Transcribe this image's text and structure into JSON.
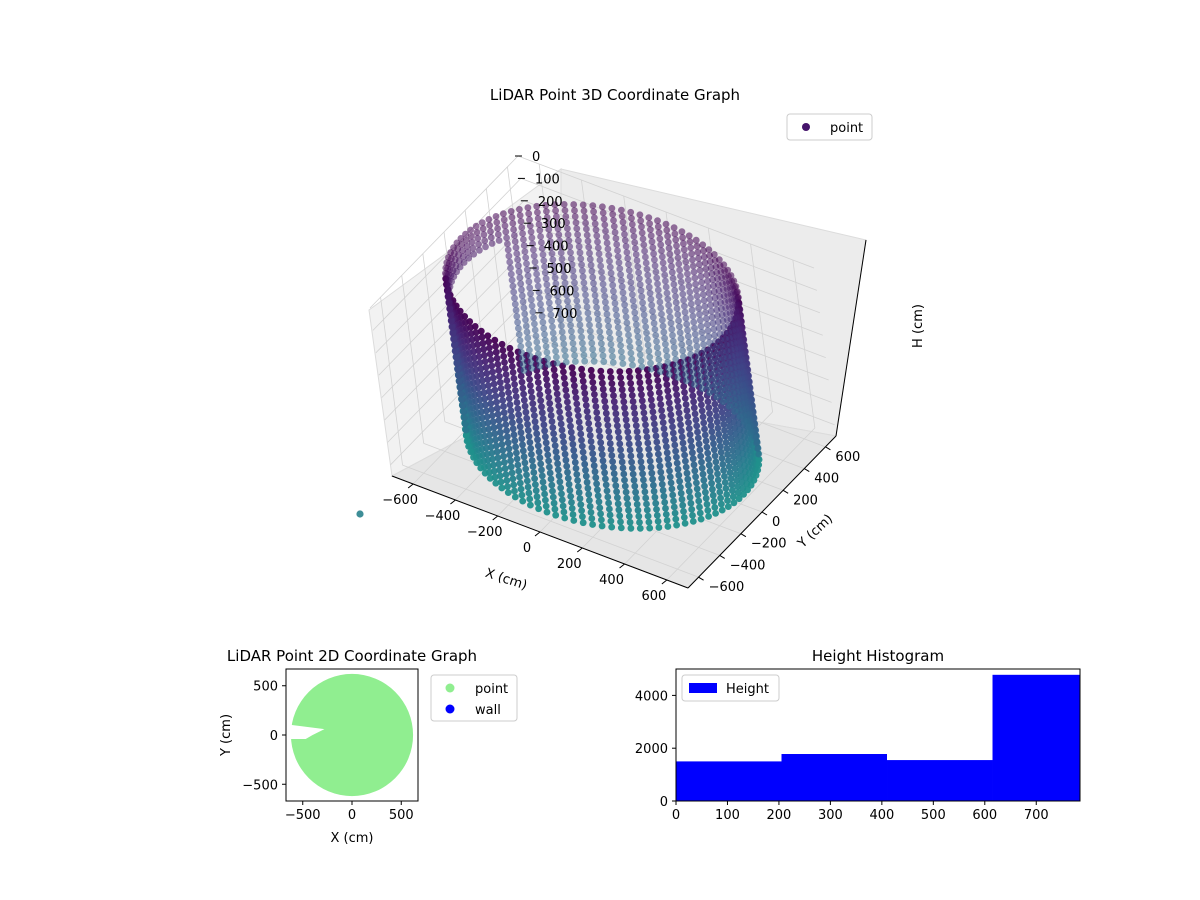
{
  "chart_data": [
    {
      "type": "scatter3d",
      "title": "LiDAR Point 3D Coordinate Graph",
      "xlabel": "X (cm)",
      "ylabel": "Y (cm)",
      "zlabel": "H (cm)",
      "xticks": [
        -600,
        -400,
        -200,
        0,
        200,
        400,
        600
      ],
      "yticks": [
        -600,
        -400,
        -200,
        0,
        200,
        400,
        600
      ],
      "zticks": [
        0,
        100,
        200,
        300,
        400,
        500,
        600,
        700
      ],
      "xlim": [
        -700,
        700
      ],
      "ylim": [
        -700,
        700
      ],
      "zlim": [
        750,
        0
      ],
      "grid": true,
      "legend": {
        "position": "top-right",
        "entries": [
          {
            "label": "point",
            "color": "#45146b"
          }
        ]
      },
      "series": [
        {
          "name": "point",
          "shape": "cylindrical wall",
          "radius": 620,
          "height_range": [
            0,
            700
          ],
          "colormap": "viridis (dark purple at top, teal at bottom)",
          "gap_direction": "-x side, near y = 0"
        }
      ]
    },
    {
      "type": "scatter",
      "title": "LiDAR Point 2D Coordinate Graph",
      "xlabel": "X (cm)",
      "ylabel": "Y (cm)",
      "xticks": [
        -500,
        0,
        500
      ],
      "yticks": [
        -500,
        0,
        500
      ],
      "xlim": [
        -670,
        670
      ],
      "ylim": [
        -670,
        670
      ],
      "legend": {
        "position": "outside-right",
        "entries": [
          {
            "label": "point",
            "color": "#90ee90"
          },
          {
            "label": "wall",
            "color": "#0000ff"
          }
        ]
      },
      "series": [
        {
          "name": "point",
          "color": "#90ee90",
          "shape": "filled disc",
          "radius": 620
        },
        {
          "name": "wall",
          "color": "#0000ff",
          "points": []
        }
      ]
    },
    {
      "type": "bar",
      "title": "Height Histogram",
      "xticks": [
        0,
        100,
        200,
        300,
        400,
        500,
        600,
        700
      ],
      "yticks": [
        0,
        2000,
        4000
      ],
      "xlim": [
        0,
        785
      ],
      "ylim": [
        0,
        5000
      ],
      "bins": [
        {
          "x0": 0,
          "x1": 205,
          "count": 1500
        },
        {
          "x0": 205,
          "x1": 410,
          "count": 1780
        },
        {
          "x0": 410,
          "x1": 615,
          "count": 1550
        },
        {
          "x0": 615,
          "x1": 785,
          "count": 4780
        }
      ],
      "legend": {
        "position": "top-left",
        "entries": [
          {
            "label": "Height",
            "color": "#0000ff"
          }
        ]
      }
    }
  ]
}
